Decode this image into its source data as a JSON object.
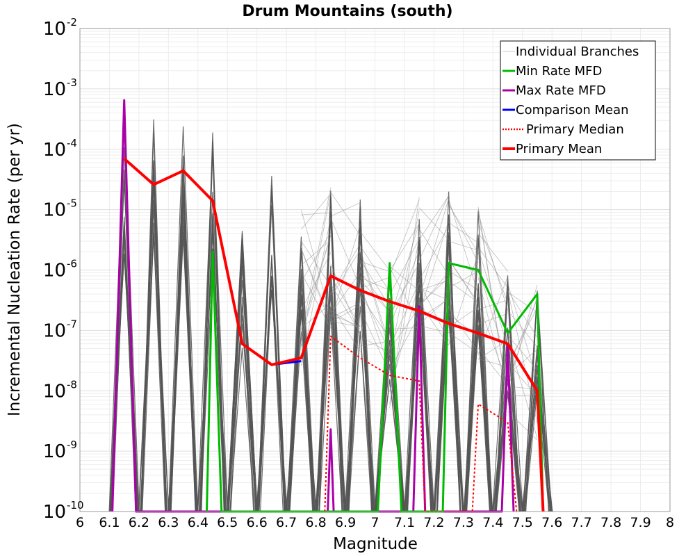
{
  "chart_data": {
    "type": "line",
    "title": "Drum Mountains (south)",
    "xlabel": "Magnitude",
    "ylabel": "Incremental Nucleation Rate (per yr)",
    "xlim": [
      6,
      8
    ],
    "ylim": [
      1e-10,
      0.01
    ],
    "yscale": "log",
    "grid": true,
    "legend_position": "top-right",
    "x_ticks": [
      "6",
      "6.1",
      "6.2",
      "6.3",
      "6.4",
      "6.5",
      "6.6",
      "6.7",
      "6.8",
      "6.9",
      "7",
      "7.1",
      "7.2",
      "7.3",
      "7.4",
      "7.5",
      "7.6",
      "7.7",
      "7.8",
      "7.9",
      "8"
    ],
    "y_ticks": [
      {
        "base": "10",
        "exp": "-10",
        "value": 1e-10
      },
      {
        "base": "10",
        "exp": "-9",
        "value": 1e-09
      },
      {
        "base": "10",
        "exp": "-8",
        "value": 1e-08
      },
      {
        "base": "10",
        "exp": "-7",
        "value": 1e-07
      },
      {
        "base": "10",
        "exp": "-6",
        "value": 1e-06
      },
      {
        "base": "10",
        "exp": "-5",
        "value": 1e-05
      },
      {
        "base": "10",
        "exp": "-4",
        "value": 0.0001
      },
      {
        "base": "10",
        "exp": "-3",
        "value": 0.001
      },
      {
        "base": "10",
        "exp": "-2",
        "value": 0.01
      }
    ],
    "legend": [
      {
        "name": "Individual Branches",
        "color": "#c8c8c8",
        "style": "solid"
      },
      {
        "name": "Min Rate MFD",
        "color": "#00bb00",
        "style": "solid"
      },
      {
        "name": "Max Rate MFD",
        "color": "#aa00aa",
        "style": "solid"
      },
      {
        "name": "Comparison Mean",
        "color": "#0000ff",
        "style": "solid"
      },
      {
        "name": "Primary Median",
        "color": "#ff0000",
        "style": "dotted"
      },
      {
        "name": "Primary Mean",
        "color": "#ff0000",
        "style": "solid"
      }
    ],
    "series": [
      {
        "name": "Primary Mean",
        "color": "#ff0000",
        "style": "solid",
        "x": [
          6.15,
          6.25,
          6.35,
          6.45,
          6.55,
          6.65,
          6.75,
          6.85,
          6.95,
          7.05,
          7.15,
          7.25,
          7.35,
          7.45,
          7.55,
          7.57
        ],
        "y": [
          7e-05,
          2.6e-05,
          4.4e-05,
          1.4e-05,
          6e-08,
          2.7e-08,
          3.5e-08,
          8e-07,
          4.6e-07,
          3e-07,
          2.1e-07,
          1.3e-07,
          9e-08,
          6e-08,
          1e-08,
          1e-10
        ]
      },
      {
        "name": "Comparison Mean",
        "color": "#0000ff",
        "style": "solid",
        "x": [
          6.65,
          6.75
        ],
        "y": [
          2.7e-08,
          3.1e-08
        ]
      },
      {
        "name": "Primary Median",
        "color": "#ff0000",
        "style": "dotted",
        "x": [
          6.83,
          6.85,
          6.95,
          7.05,
          7.15,
          7.17,
          7.33,
          7.35,
          7.45,
          7.48
        ],
        "y": [
          1e-10,
          8e-08,
          3.5e-08,
          1.8e-08,
          1.45e-08,
          1e-10,
          1e-10,
          6e-09,
          3e-09,
          1e-10
        ]
      },
      {
        "name": "Min Rate MFD",
        "color": "#00bb00",
        "style": "solid",
        "x": [
          6.43,
          6.45,
          6.48,
          7.01,
          7.05,
          7.09,
          7.23,
          7.25,
          7.35,
          7.45,
          7.55,
          7.57
        ],
        "y": [
          1e-10,
          2e-06,
          1e-10,
          1e-10,
          1.3e-06,
          1e-10,
          1e-10,
          1.3e-06,
          1e-06,
          9e-08,
          4e-07,
          1e-10
        ]
      },
      {
        "name": "Max Rate MFD",
        "color": "#aa00aa",
        "style": "solid",
        "x": [
          6.11,
          6.15,
          6.19,
          6.84,
          6.85,
          6.86,
          7.13,
          7.15,
          7.17,
          7.43,
          7.45,
          7.47
        ],
        "y": [
          1e-10,
          0.00065,
          1e-10,
          1e-10,
          2.3e-09,
          1e-10,
          1e-10,
          2.5e-07,
          1e-10,
          1e-10,
          6e-08,
          1e-10
        ]
      }
    ],
    "branch_spikes": [
      {
        "center": 6.15,
        "peak": 0.0002
      },
      {
        "center": 6.25,
        "peak": 0.00042
      },
      {
        "center": 6.35,
        "peak": 0.00042
      },
      {
        "center": 6.45,
        "peak": 0.0002
      },
      {
        "center": 6.55,
        "peak": 4.5e-06
      },
      {
        "center": 6.65,
        "peak": 7e-05
      },
      {
        "center": 6.75,
        "peak": 1e-05
      },
      {
        "center": 6.85,
        "peak": 2.5e-05
      },
      {
        "center": 6.95,
        "peak": 1.5e-05
      },
      {
        "center": 7.05,
        "peak": 2e-06
      },
      {
        "center": 7.15,
        "peak": 2e-05
      },
      {
        "center": 7.25,
        "peak": 2e-05
      },
      {
        "center": 7.35,
        "peak": 1.2e-05
      },
      {
        "center": 7.45,
        "peak": 1.2e-06
      },
      {
        "center": 7.55,
        "peak": 6e-07
      }
    ]
  }
}
